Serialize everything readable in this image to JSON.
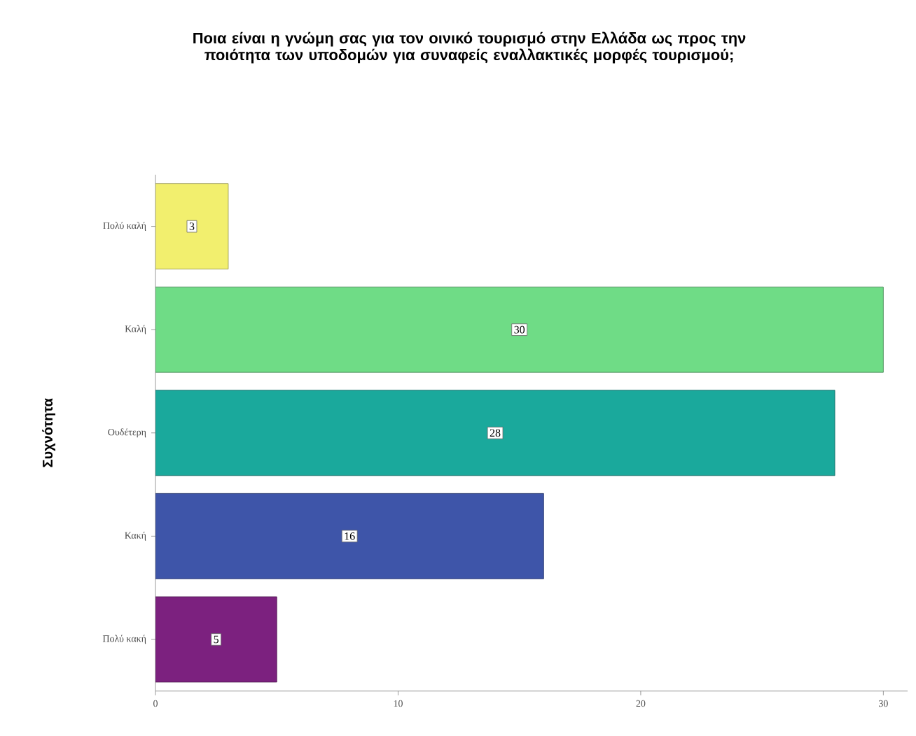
{
  "chart_data": {
    "type": "bar",
    "orientation": "horizontal",
    "title": "Ποια είναι η γνώμη σας για τον οινικό τουρισμό στην Ελλάδα ως προς την ποιότητα των υποδομών για συναφείς εναλλακτικές μορφές τουρισμού;",
    "ylabel": "Συχνότητα",
    "categories": [
      "Πολύ καλή",
      "Καλή",
      "Ουδέτερη",
      "Κακή",
      "Πολύ κακή"
    ],
    "values": [
      3,
      30,
      28,
      16,
      5
    ],
    "colors": [
      "#f2ef6e",
      "#6fdc86",
      "#1aa99c",
      "#3e55a9",
      "#7c217f"
    ],
    "xlim": [
      0,
      31
    ],
    "xticks": [
      0,
      10,
      20,
      30
    ],
    "data_labels": true
  }
}
